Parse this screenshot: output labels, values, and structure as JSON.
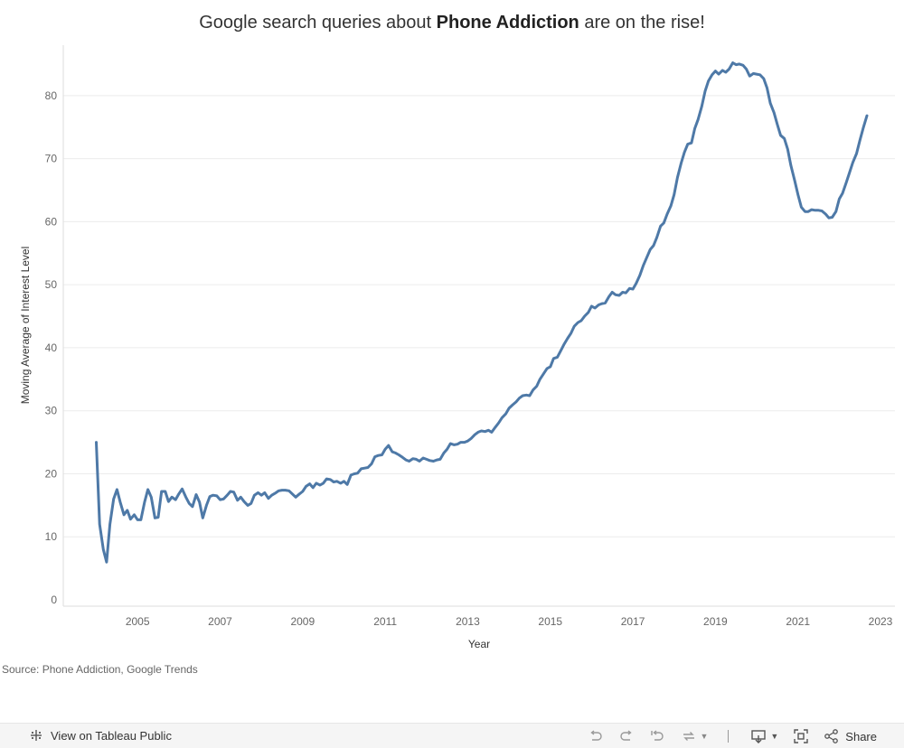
{
  "title": {
    "prefix": "Google search queries about",
    "bold": "Phone Addiction",
    "suffix": "are on the rise!"
  },
  "source_note": "Source: Phone Addiction, Google Trends",
  "toolbar": {
    "view_label": "View on Tableau Public",
    "share_label": "Share"
  },
  "colors": {
    "line": "#4e79a7",
    "grid": "#ececec",
    "axis_text": "#666666"
  },
  "chart_data": {
    "type": "line",
    "title": "Google search queries about Phone Addiction are on the rise!",
    "xlabel": "Year",
    "ylabel": "Moving Average of Interest Level",
    "xlim": [
      2003.2,
      2023.35
    ],
    "ylim": [
      -1,
      88
    ],
    "x_ticks": [
      2005,
      2007,
      2009,
      2011,
      2013,
      2015,
      2017,
      2019,
      2021,
      2023
    ],
    "y_ticks": [
      0,
      10,
      20,
      30,
      40,
      50,
      60,
      70,
      80
    ],
    "series": [
      {
        "name": "Moving Average of Interest Level",
        "points": [
          [
            2004.0,
            25
          ],
          [
            2004.08,
            12
          ],
          [
            2004.17,
            8
          ],
          [
            2004.25,
            6
          ],
          [
            2004.33,
            12
          ],
          [
            2004.42,
            16
          ],
          [
            2004.5,
            17.5
          ],
          [
            2004.58,
            15.5
          ],
          [
            2004.67,
            13.5
          ],
          [
            2004.75,
            14.2
          ],
          [
            2004.83,
            12.8
          ],
          [
            2004.92,
            13.5
          ],
          [
            2005.0,
            12.7
          ],
          [
            2005.08,
            12.7
          ],
          [
            2005.17,
            15.5
          ],
          [
            2005.25,
            17.5
          ],
          [
            2005.33,
            16.3
          ],
          [
            2005.42,
            13
          ],
          [
            2005.5,
            13.1
          ],
          [
            2005.58,
            17.2
          ],
          [
            2005.67,
            17.2
          ],
          [
            2005.75,
            15.6
          ],
          [
            2005.83,
            16.3
          ],
          [
            2005.92,
            15.9
          ],
          [
            2006.0,
            16.8
          ],
          [
            2006.08,
            17.6
          ],
          [
            2006.17,
            16.3
          ],
          [
            2006.25,
            15.3
          ],
          [
            2006.33,
            14.8
          ],
          [
            2006.42,
            16.7
          ],
          [
            2006.5,
            15.5
          ],
          [
            2006.58,
            13
          ],
          [
            2006.67,
            15
          ],
          [
            2006.75,
            16.4
          ],
          [
            2006.83,
            16.6
          ],
          [
            2006.92,
            16.5
          ],
          [
            2007.0,
            15.9
          ],
          [
            2007.08,
            16
          ],
          [
            2007.17,
            16.6
          ],
          [
            2007.25,
            17.2
          ],
          [
            2007.33,
            17.1
          ],
          [
            2007.42,
            15.8
          ],
          [
            2007.5,
            16.3
          ],
          [
            2007.58,
            15.6
          ],
          [
            2007.67,
            15
          ],
          [
            2007.75,
            15.3
          ],
          [
            2007.83,
            16.6
          ],
          [
            2007.92,
            17
          ],
          [
            2008.0,
            16.6
          ],
          [
            2008.08,
            17
          ],
          [
            2008.17,
            16.1
          ],
          [
            2008.25,
            16.6
          ],
          [
            2008.33,
            16.9
          ],
          [
            2008.42,
            17.3
          ],
          [
            2008.5,
            17.4
          ],
          [
            2008.58,
            17.4
          ],
          [
            2008.67,
            17.3
          ],
          [
            2008.75,
            16.8
          ],
          [
            2008.83,
            16.3
          ],
          [
            2008.92,
            16.8
          ],
          [
            2009.0,
            17.2
          ],
          [
            2009.08,
            18
          ],
          [
            2009.17,
            18.4
          ],
          [
            2009.25,
            17.8
          ],
          [
            2009.33,
            18.5
          ],
          [
            2009.42,
            18.2
          ],
          [
            2009.5,
            18.5
          ],
          [
            2009.58,
            19.2
          ],
          [
            2009.67,
            19.1
          ],
          [
            2009.75,
            18.7
          ],
          [
            2009.83,
            18.8
          ],
          [
            2009.92,
            18.5
          ],
          [
            2010.0,
            18.8
          ],
          [
            2010.08,
            18.3
          ],
          [
            2010.17,
            19.8
          ],
          [
            2010.25,
            20
          ],
          [
            2010.33,
            20.1
          ],
          [
            2010.42,
            20.8
          ],
          [
            2010.5,
            20.9
          ],
          [
            2010.58,
            21
          ],
          [
            2010.67,
            21.6
          ],
          [
            2010.75,
            22.7
          ],
          [
            2010.83,
            22.9
          ],
          [
            2010.92,
            23
          ],
          [
            2011.0,
            23.9
          ],
          [
            2011.08,
            24.5
          ],
          [
            2011.17,
            23.5
          ],
          [
            2011.25,
            23.3
          ],
          [
            2011.33,
            23
          ],
          [
            2011.42,
            22.6
          ],
          [
            2011.5,
            22.2
          ],
          [
            2011.58,
            22
          ],
          [
            2011.67,
            22.4
          ],
          [
            2011.75,
            22.3
          ],
          [
            2011.83,
            22
          ],
          [
            2011.92,
            22.5
          ],
          [
            2012.0,
            22.3
          ],
          [
            2012.08,
            22.1
          ],
          [
            2012.17,
            22
          ],
          [
            2012.25,
            22.2
          ],
          [
            2012.33,
            22.3
          ],
          [
            2012.42,
            23.3
          ],
          [
            2012.5,
            23.9
          ],
          [
            2012.58,
            24.8
          ],
          [
            2012.67,
            24.6
          ],
          [
            2012.75,
            24.7
          ],
          [
            2012.83,
            25
          ],
          [
            2012.92,
            25
          ],
          [
            2013.0,
            25.2
          ],
          [
            2013.08,
            25.6
          ],
          [
            2013.17,
            26.2
          ],
          [
            2013.25,
            26.6
          ],
          [
            2013.33,
            26.8
          ],
          [
            2013.42,
            26.7
          ],
          [
            2013.5,
            26.9
          ],
          [
            2013.58,
            26.6
          ],
          [
            2013.67,
            27.4
          ],
          [
            2013.75,
            28.1
          ],
          [
            2013.83,
            28.9
          ],
          [
            2013.92,
            29.5
          ],
          [
            2014.0,
            30.4
          ],
          [
            2014.08,
            30.9
          ],
          [
            2014.17,
            31.4
          ],
          [
            2014.25,
            32
          ],
          [
            2014.33,
            32.4
          ],
          [
            2014.42,
            32.5
          ],
          [
            2014.5,
            32.4
          ],
          [
            2014.58,
            33.3
          ],
          [
            2014.67,
            33.9
          ],
          [
            2014.75,
            35
          ],
          [
            2014.83,
            35.8
          ],
          [
            2014.92,
            36.7
          ],
          [
            2015.0,
            37
          ],
          [
            2015.08,
            38.3
          ],
          [
            2015.17,
            38.5
          ],
          [
            2015.25,
            39.5
          ],
          [
            2015.33,
            40.5
          ],
          [
            2015.42,
            41.5
          ],
          [
            2015.5,
            42.3
          ],
          [
            2015.58,
            43.4
          ],
          [
            2015.67,
            44
          ],
          [
            2015.75,
            44.3
          ],
          [
            2015.83,
            45
          ],
          [
            2015.92,
            45.6
          ],
          [
            2016.0,
            46.6
          ],
          [
            2016.08,
            46.3
          ],
          [
            2016.17,
            46.8
          ],
          [
            2016.25,
            47
          ],
          [
            2016.33,
            47.1
          ],
          [
            2016.42,
            48.1
          ],
          [
            2016.5,
            48.8
          ],
          [
            2016.58,
            48.4
          ],
          [
            2016.67,
            48.3
          ],
          [
            2016.75,
            48.8
          ],
          [
            2016.83,
            48.7
          ],
          [
            2016.92,
            49.4
          ],
          [
            2017.0,
            49.3
          ],
          [
            2017.08,
            50.2
          ],
          [
            2017.17,
            51.5
          ],
          [
            2017.25,
            53
          ],
          [
            2017.33,
            54.2
          ],
          [
            2017.42,
            55.6
          ],
          [
            2017.5,
            56.2
          ],
          [
            2017.58,
            57.5
          ],
          [
            2017.67,
            59.3
          ],
          [
            2017.75,
            59.8
          ],
          [
            2017.83,
            61.2
          ],
          [
            2017.92,
            62.5
          ],
          [
            2018.0,
            64.3
          ],
          [
            2018.08,
            67
          ],
          [
            2018.17,
            69.3
          ],
          [
            2018.25,
            71
          ],
          [
            2018.33,
            72.3
          ],
          [
            2018.42,
            72.5
          ],
          [
            2018.5,
            74.8
          ],
          [
            2018.58,
            76.2
          ],
          [
            2018.67,
            78.3
          ],
          [
            2018.75,
            80.7
          ],
          [
            2018.83,
            82.3
          ],
          [
            2018.92,
            83.3
          ],
          [
            2019.0,
            83.9
          ],
          [
            2019.08,
            83.4
          ],
          [
            2019.17,
            84
          ],
          [
            2019.25,
            83.7
          ],
          [
            2019.33,
            84.2
          ],
          [
            2019.42,
            85.2
          ],
          [
            2019.5,
            84.9
          ],
          [
            2019.58,
            85
          ],
          [
            2019.67,
            84.8
          ],
          [
            2019.75,
            84.2
          ],
          [
            2019.83,
            83.1
          ],
          [
            2019.92,
            83.5
          ],
          [
            2020.0,
            83.4
          ],
          [
            2020.08,
            83.3
          ],
          [
            2020.17,
            82.7
          ],
          [
            2020.25,
            81.2
          ],
          [
            2020.33,
            78.8
          ],
          [
            2020.42,
            77.3
          ],
          [
            2020.5,
            75.4
          ],
          [
            2020.58,
            73.7
          ],
          [
            2020.67,
            73.2
          ],
          [
            2020.75,
            71.5
          ],
          [
            2020.83,
            68.9
          ],
          [
            2020.92,
            66.5
          ],
          [
            2021.0,
            64.3
          ],
          [
            2021.08,
            62.3
          ],
          [
            2021.17,
            61.6
          ],
          [
            2021.25,
            61.6
          ],
          [
            2021.33,
            61.9
          ],
          [
            2021.42,
            61.8
          ],
          [
            2021.5,
            61.8
          ],
          [
            2021.58,
            61.7
          ],
          [
            2021.67,
            61.2
          ],
          [
            2021.75,
            60.6
          ],
          [
            2021.83,
            60.7
          ],
          [
            2021.92,
            61.6
          ],
          [
            2022.0,
            63.6
          ],
          [
            2022.08,
            64.5
          ],
          [
            2022.17,
            66.2
          ],
          [
            2022.25,
            67.8
          ],
          [
            2022.33,
            69.4
          ],
          [
            2022.42,
            70.8
          ],
          [
            2022.5,
            72.9
          ],
          [
            2022.58,
            74.8
          ],
          [
            2022.67,
            76.8
          ]
        ]
      }
    ]
  }
}
